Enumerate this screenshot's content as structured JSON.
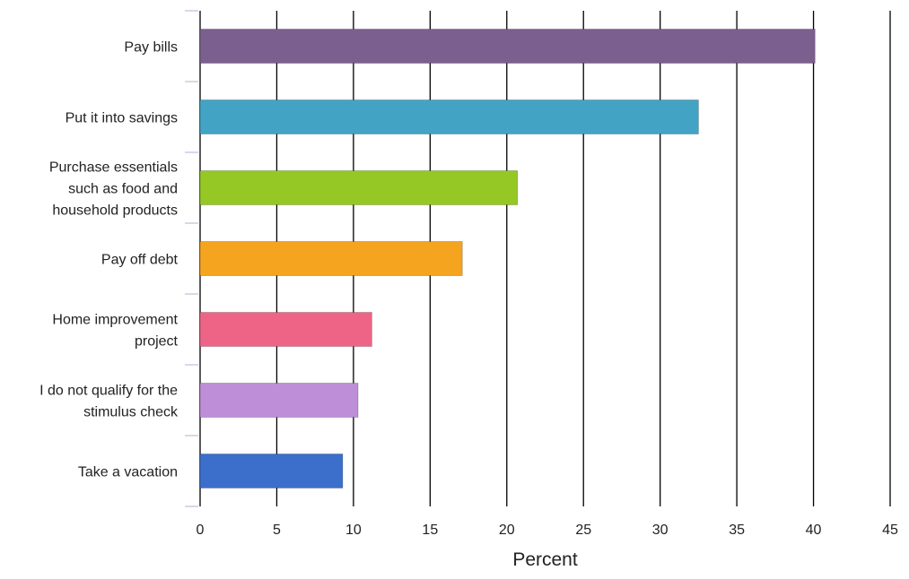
{
  "chart_data": {
    "type": "bar",
    "orientation": "horizontal",
    "title": "",
    "xlabel": "Percent",
    "ylabel": "",
    "xlim": [
      0,
      45
    ],
    "xticks": [
      0,
      5,
      10,
      15,
      20,
      25,
      30,
      35,
      40,
      45
    ],
    "grid": "vertical",
    "legend": "none",
    "categories": [
      [
        "Pay bills"
      ],
      [
        "Put it into savings"
      ],
      [
        "Purchase essentials",
        "such as food and",
        "household products"
      ],
      [
        "Pay off debt"
      ],
      [
        "Home improvement",
        "project"
      ],
      [
        "I do not qualify for the",
        "stimulus check"
      ],
      [
        "Take a vacation"
      ]
    ],
    "values": [
      40.1,
      32.5,
      20.7,
      17.1,
      11.2,
      10.3,
      9.3
    ],
    "colors": [
      "#7b5f8e",
      "#42a3c4",
      "#95c825",
      "#f4a41f",
      "#ee6487",
      "#bf8ed8",
      "#3c6fcb"
    ]
  }
}
